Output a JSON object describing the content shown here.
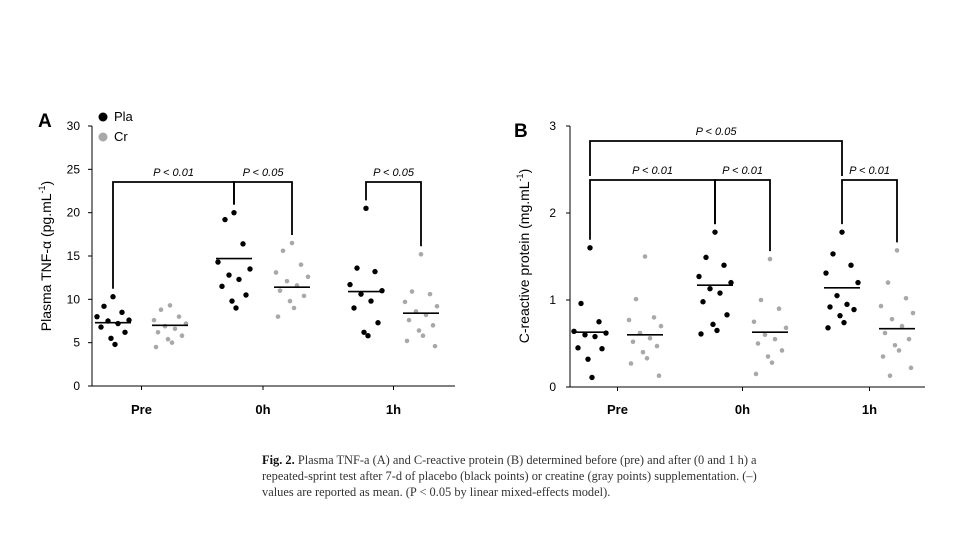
{
  "colors": {
    "pla": "#000000",
    "cr": "#a8a8a8",
    "axis": "#000000"
  },
  "legend": [
    {
      "label": "Pla",
      "color": "#000000"
    },
    {
      "label": "Cr",
      "color": "#a8a8a8"
    }
  ],
  "caption": {
    "label": "Fig. 2.",
    "text": "Plasma TNF-a (A) and C-reactive protein (B) determined before (pre) and after (0 and 1 h) a repeated-sprint test after 7-d of placebo (black points) or creatine (gray points) supplementation. (–) values are reported as mean. (P < 0.05 by linear mixed-effects model)."
  },
  "chart_data": [
    {
      "panel": "A",
      "type": "scatter",
      "ylabel": "Plasma TNF-α (pg.mL⁻¹)",
      "ylabel_main": "Plasma TNF-α (pg.mL",
      "ylabel_sup": "-1",
      "ylabel_close": ")",
      "ylim": [
        0,
        30
      ],
      "yticks": [
        0,
        5,
        10,
        15,
        20,
        25,
        30
      ],
      "categories": [
        "Pre",
        "0h",
        "1h"
      ],
      "series": [
        {
          "name": "Pla",
          "means": [
            7.3,
            14.7,
            10.9
          ],
          "points": [
            [
              10.3,
              9.2,
              8.5,
              8.0,
              7.6,
              7.5,
              7.2,
              6.8,
              6.2,
              5.5,
              4.8
            ],
            [
              20.0,
              19.2,
              16.4,
              14.3,
              13.5,
              12.8,
              12.3,
              11.5,
              10.5,
              9.8,
              9.0
            ],
            [
              20.5,
              13.6,
              13.2,
              11.7,
              11.0,
              10.6,
              9.8,
              9.0,
              7.3,
              6.2,
              5.8
            ]
          ]
        },
        {
          "name": "Cr",
          "means": [
            7.0,
            11.4,
            8.4
          ],
          "points": [
            [
              9.3,
              8.8,
              8.0,
              7.6,
              7.2,
              6.9,
              6.6,
              6.2,
              5.8,
              5.4,
              5.0,
              4.5
            ],
            [
              16.5,
              15.6,
              14.0,
              13.1,
              12.6,
              12.1,
              11.6,
              11.0,
              10.4,
              9.8,
              9.0,
              8.0
            ],
            [
              15.2,
              10.9,
              10.6,
              9.7,
              9.2,
              8.6,
              8.2,
              7.6,
              7.0,
              6.4,
              5.8,
              5.2,
              4.6
            ]
          ]
        }
      ],
      "annotations": [
        {
          "text": "P < 0.01",
          "from": "Pre Pla",
          "to": "0h Pla"
        },
        {
          "text": "P < 0.05",
          "from": "0h Pla",
          "to": "0h Cr"
        },
        {
          "text": "P < 0.05",
          "from": "1h Pla",
          "to": "1h Cr"
        }
      ]
    },
    {
      "panel": "B",
      "type": "scatter",
      "ylabel": "C-reactive protein (mg.mL⁻¹)",
      "ylabel_main": "C-reactive protein (mg.mL",
      "ylabel_sup": "-1",
      "ylabel_close": ")",
      "ylim": [
        0,
        3
      ],
      "yticks": [
        0,
        1,
        2,
        3
      ],
      "categories": [
        "Pre",
        "0h",
        "1h"
      ],
      "series": [
        {
          "name": "Pla",
          "means": [
            0.63,
            1.17,
            1.14
          ],
          "points": [
            [
              1.6,
              0.96,
              0.75,
              0.64,
              0.62,
              0.6,
              0.58,
              0.45,
              0.44,
              0.32,
              0.11
            ],
            [
              1.78,
              1.49,
              1.4,
              1.27,
              1.2,
              1.13,
              1.08,
              0.98,
              0.83,
              0.72,
              0.65,
              0.61
            ],
            [
              1.78,
              1.53,
              1.4,
              1.31,
              1.2,
              1.05,
              0.95,
              0.92,
              0.89,
              0.82,
              0.74,
              0.68
            ]
          ]
        },
        {
          "name": "Cr",
          "means": [
            0.6,
            0.63,
            0.67
          ],
          "points": [
            [
              1.5,
              1.01,
              0.8,
              0.77,
              0.7,
              0.62,
              0.56,
              0.52,
              0.47,
              0.4,
              0.33,
              0.27,
              0.13
            ],
            [
              1.47,
              1.0,
              0.9,
              0.75,
              0.68,
              0.6,
              0.55,
              0.5,
              0.42,
              0.35,
              0.28,
              0.15
            ],
            [
              1.57,
              1.2,
              1.02,
              0.93,
              0.85,
              0.78,
              0.7,
              0.62,
              0.55,
              0.48,
              0.42,
              0.35,
              0.22,
              0.13
            ]
          ]
        }
      ],
      "annotations": [
        {
          "text": "P < 0.05",
          "from": "Pre Pla",
          "to": "1h Pla",
          "level": 2
        },
        {
          "text": "P < 0.01",
          "from": "Pre Pla",
          "to": "0h Pla",
          "level": 1
        },
        {
          "text": "P < 0.01",
          "from": "0h Pla",
          "to": "0h Cr",
          "level": 1
        },
        {
          "text": "P < 0.01",
          "from": "1h Pla",
          "to": "1h Cr",
          "level": 1
        }
      ]
    }
  ]
}
